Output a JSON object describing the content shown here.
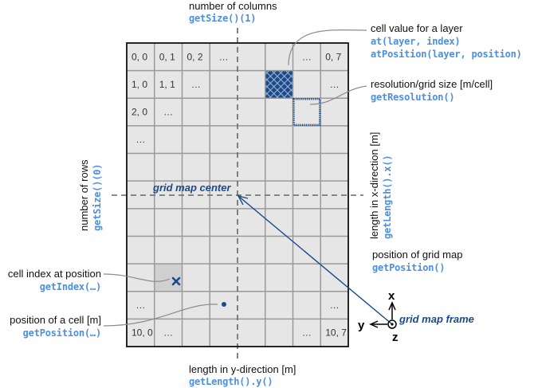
{
  "colors": {
    "cell_fill": "#e6e6e6",
    "cell_highlight": "#d0d0d0",
    "grid_line": "#9a9a9a",
    "border": "#111111",
    "navy": "#1a4a8a",
    "code_blue": "#4a90e2",
    "leader_line": "#8c8c8c"
  },
  "grid": {
    "rows": 11,
    "cols": 8,
    "cells": [
      {
        "row": 0,
        "col": 0,
        "text": "0, 0"
      },
      {
        "row": 0,
        "col": 1,
        "text": "0, 1"
      },
      {
        "row": 0,
        "col": 2,
        "text": "0, 2"
      },
      {
        "row": 0,
        "col": 3,
        "text": "..."
      },
      {
        "row": 0,
        "col": 6,
        "text": "..."
      },
      {
        "row": 0,
        "col": 7,
        "text": "0, 7"
      },
      {
        "row": 1,
        "col": 0,
        "text": "1, 0"
      },
      {
        "row": 1,
        "col": 1,
        "text": "1, 1"
      },
      {
        "row": 1,
        "col": 2,
        "text": "..."
      },
      {
        "row": 1,
        "col": 7,
        "text": "..."
      },
      {
        "row": 2,
        "col": 0,
        "text": "2, 0"
      },
      {
        "row": 2,
        "col": 1,
        "text": "..."
      },
      {
        "row": 3,
        "col": 0,
        "text": "..."
      },
      {
        "row": 9,
        "col": 0,
        "text": "..."
      },
      {
        "row": 9,
        "col": 7,
        "text": "..."
      },
      {
        "row": 10,
        "col": 0,
        "text": "10, 0"
      },
      {
        "row": 10,
        "col": 1,
        "text": "..."
      },
      {
        "row": 10,
        "col": 6,
        "text": "..."
      },
      {
        "row": 10,
        "col": 7,
        "text": "10, 7"
      }
    ],
    "hatched_cell": {
      "row": 1,
      "col": 5
    },
    "dotted_cell": {
      "row": 2,
      "col": 6
    },
    "highlight_cell": {
      "row": 8,
      "col": 1
    }
  },
  "annotations": {
    "columns": {
      "label": "number of columns",
      "code": "getSize()(1)"
    },
    "cell_value": {
      "label": "cell value for a layer",
      "code1": "at(layer, index)",
      "code2": "atPosition(layer, position)"
    },
    "resolution": {
      "label": "resolution/grid size [m/cell]",
      "code": "getResolution()"
    },
    "rows": {
      "label": "number of rows",
      "code": "getSize()(0)"
    },
    "length_x": {
      "label": "length in x-direction [m]",
      "code": "getLength().x()"
    },
    "position_map": {
      "label": "position of grid map",
      "code": "getPosition()"
    },
    "cell_index": {
      "label": "cell index at position",
      "code": "getIndex(…)"
    },
    "cell_position": {
      "label": "position of a cell [m]",
      "code": "getPosition(…)"
    },
    "length_y": {
      "label": "length in y-direction [m]",
      "code": "getLength().y()"
    },
    "grid_center": {
      "label": "grid map center"
    },
    "frame": {
      "label": "grid map frame",
      "x": "x",
      "y": "y",
      "z": "z"
    }
  }
}
